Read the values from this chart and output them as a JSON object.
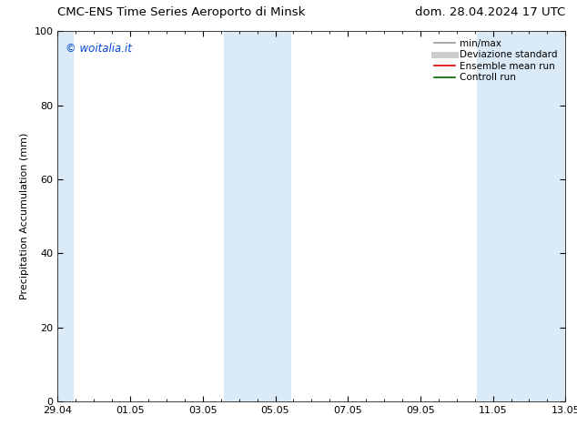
{
  "title_left": "CMC-ENS Time Series Aeroporto di Minsk",
  "title_right": "dom. 28.04.2024 17 UTC",
  "ylabel": "Precipitation Accumulation (mm)",
  "watermark": "© woitalia.it",
  "watermark_color": "#0044cc",
  "ylim": [
    0,
    100
  ],
  "xlim_start": 0,
  "xlim_end": 14,
  "xtick_labels": [
    "29.04",
    "01.05",
    "03.05",
    "05.05",
    "07.05",
    "09.05",
    "11.05",
    "13.05"
  ],
  "xtick_positions": [
    0,
    2,
    4,
    6,
    8,
    10,
    12,
    14
  ],
  "ytick_labels": [
    "0",
    "20",
    "40",
    "60",
    "80",
    "100"
  ],
  "ytick_positions": [
    0,
    20,
    40,
    60,
    80,
    100
  ],
  "shaded_bands": [
    {
      "xmin": 0.0,
      "xmax": 0.43,
      "color": "#daeaf7"
    },
    {
      "xmin": 4.57,
      "xmax": 6.43,
      "color": "#daeaf7"
    },
    {
      "xmin": 11.57,
      "xmax": 14.0,
      "color": "#daeaf7"
    }
  ],
  "legend_entries": [
    {
      "label": "min/max",
      "color": "#999999",
      "lw": 1.2,
      "ls": "-"
    },
    {
      "label": "Deviazione standard",
      "color": "#cccccc",
      "lw": 5,
      "ls": "-"
    },
    {
      "label": "Ensemble mean run",
      "color": "#dd0000",
      "lw": 1.2,
      "ls": "-"
    },
    {
      "label": "Controll run",
      "color": "#006600",
      "lw": 1.2,
      "ls": "-"
    }
  ],
  "bg_color": "#ffffff",
  "plot_bg_color": "#ffffff",
  "font_size_title": 9.5,
  "font_size_label": 8,
  "font_size_tick": 8,
  "font_size_legend": 7.5,
  "font_size_watermark": 8.5
}
